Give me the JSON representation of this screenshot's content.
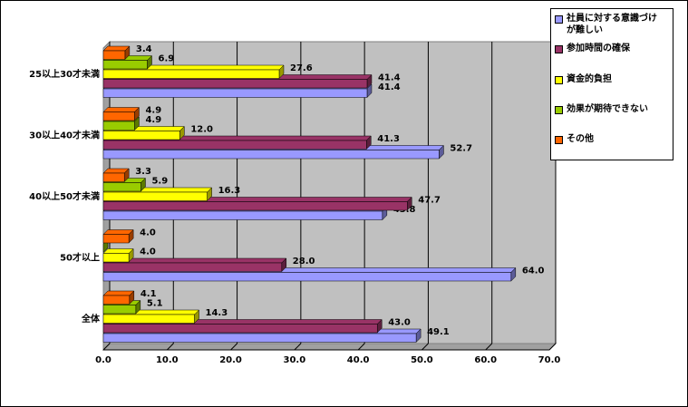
{
  "chart_data": {
    "type": "bar3d-horizontal",
    "categories": [
      "25以上30才未満",
      "30以上40才未満",
      "40以上50才未満",
      "50才以上",
      "全体"
    ],
    "series": [
      {
        "name": "社員に対する意識づけが難しい",
        "color": "#9999ff",
        "values": [
          41.4,
          52.7,
          43.8,
          64.0,
          49.1
        ],
        "value_labels": [
          "41.4",
          "52.7",
          "43.8",
          "64.0",
          "49.1"
        ]
      },
      {
        "name": "参加時間の確保",
        "color": "#993366",
        "values": [
          41.4,
          41.3,
          47.7,
          28.0,
          43.0
        ],
        "value_labels": [
          "41.4",
          "41.3",
          "47.7",
          "28.0",
          "43.0"
        ]
      },
      {
        "name": "資金的負担",
        "color": "#ffff00",
        "values": [
          27.6,
          12.0,
          16.3,
          4.0,
          14.3
        ],
        "value_labels": [
          "27.6",
          "12.0",
          "16.3",
          "4.0",
          "14.3"
        ]
      },
      {
        "name": "効果が期待できない",
        "color": "#99cc00",
        "values": [
          6.9,
          4.9,
          5.9,
          0,
          5.1
        ],
        "value_labels": [
          "6.9",
          "4.9",
          "5.9",
          null,
          "5.1"
        ]
      },
      {
        "name": "その他",
        "color": "#ff6600",
        "values": [
          3.4,
          4.9,
          3.3,
          4.0,
          4.1
        ],
        "value_labels": [
          "3.4",
          "4.9",
          "3.3",
          "4.0",
          "4.1"
        ]
      }
    ],
    "xlim": [
      0,
      70
    ],
    "xticks": [
      {
        "value": 0,
        "label": "0.0"
      },
      {
        "value": 10,
        "label": "10.0"
      },
      {
        "value": 20,
        "label": "20.0"
      },
      {
        "value": 30,
        "label": "30.0"
      },
      {
        "value": 40,
        "label": "40.0"
      },
      {
        "value": 50,
        "label": "50.0"
      },
      {
        "value": 60,
        "label": "60.0"
      },
      {
        "value": 70,
        "label": "70.0"
      }
    ],
    "grid": true,
    "legend": "right"
  }
}
